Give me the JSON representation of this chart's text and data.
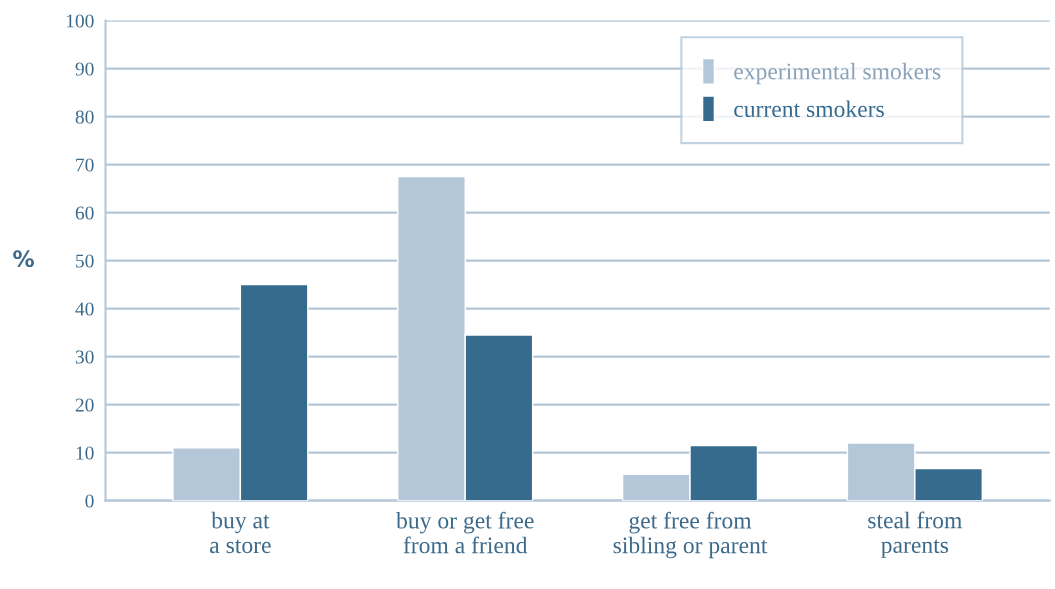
{
  "chart_data": {
    "type": "bar",
    "ylabel": "%",
    "categories": [
      "buy at\na store",
      "buy or get free\nfrom a friend",
      "get free from\nsibling or parent",
      "steal from\nparents"
    ],
    "series": [
      {
        "name": "experimental smokers",
        "color": "#b4c7d9",
        "values": [
          11,
          67.5,
          5.5,
          12
        ]
      },
      {
        "name": "current smokers",
        "color": "#376b8e",
        "values": [
          45,
          34.5,
          11.5,
          6.7
        ]
      }
    ],
    "ylim": [
      0,
      100
    ],
    "yticks": [
      0,
      10,
      20,
      30,
      40,
      50,
      60,
      70,
      80,
      90,
      100
    ],
    "grid": "y",
    "legend": "top right"
  }
}
